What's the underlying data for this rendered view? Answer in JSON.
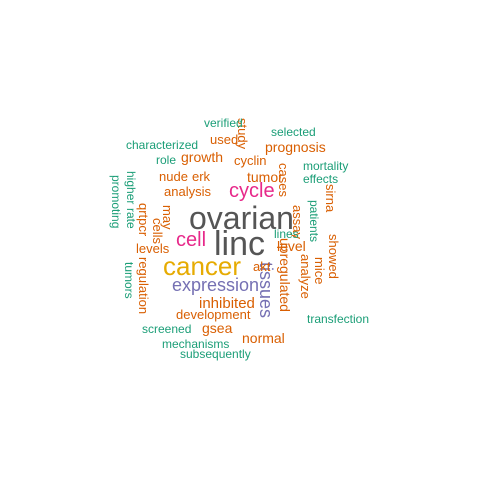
{
  "palette": {
    "green": "#1b9e77",
    "orange": "#d95f02",
    "purple": "#7570b3",
    "magenta": "#e7298a",
    "gold": "#e6ab02",
    "gray": "#555555"
  },
  "words": [
    {
      "id": "ovarian",
      "text": "ovarian",
      "color": "gray"
    },
    {
      "id": "linc",
      "text": "linc",
      "color": "gray"
    },
    {
      "id": "cancer",
      "text": "cancer",
      "color": "gold"
    },
    {
      "id": "cycle",
      "text": "cycle",
      "color": "magenta"
    },
    {
      "id": "cell",
      "text": "cell",
      "color": "magenta"
    },
    {
      "id": "expression",
      "text": "expression",
      "color": "purple"
    },
    {
      "id": "tissues",
      "text": "tissues",
      "color": "purple"
    },
    {
      "id": "inhibited",
      "text": "inhibited",
      "color": "orange"
    },
    {
      "id": "development",
      "text": "development",
      "color": "orange"
    },
    {
      "id": "upregulated",
      "text": "upregulated",
      "color": "orange"
    },
    {
      "id": "tumor",
      "text": "tumor",
      "color": "orange"
    },
    {
      "id": "level",
      "text": "level",
      "color": "orange"
    },
    {
      "id": "normal",
      "text": "normal",
      "color": "orange"
    },
    {
      "id": "gsea",
      "text": "gsea",
      "color": "orange"
    },
    {
      "id": "prognosis",
      "text": "prognosis",
      "color": "orange"
    },
    {
      "id": "growth",
      "text": "growth",
      "color": "orange"
    },
    {
      "id": "cyclin",
      "text": "cyclin",
      "color": "orange"
    },
    {
      "id": "analysis",
      "text": "analysis",
      "color": "orange"
    },
    {
      "id": "nude",
      "text": "nude",
      "color": "orange"
    },
    {
      "id": "erk",
      "text": "erk",
      "color": "orange"
    },
    {
      "id": "used",
      "text": "used",
      "color": "orange"
    },
    {
      "id": "study",
      "text": "study",
      "color": "orange"
    },
    {
      "id": "levels",
      "text": "levels",
      "color": "orange"
    },
    {
      "id": "akt",
      "text": "akt",
      "color": "orange"
    },
    {
      "id": "analyze",
      "text": "analyze",
      "color": "orange"
    },
    {
      "id": "showed",
      "text": "showed",
      "color": "orange"
    },
    {
      "id": "sirna",
      "text": "sirna",
      "color": "orange"
    },
    {
      "id": "assay",
      "text": "assay",
      "color": "orange"
    },
    {
      "id": "cases",
      "text": "cases",
      "color": "orange"
    },
    {
      "id": "may",
      "text": "may",
      "color": "orange"
    },
    {
      "id": "qrtpcr",
      "text": "qrtpcr",
      "color": "orange"
    },
    {
      "id": "cells",
      "text": "cells",
      "color": "orange"
    },
    {
      "id": "regulation",
      "text": "regulation",
      "color": "orange"
    },
    {
      "id": "mice",
      "text": "mice",
      "color": "orange"
    },
    {
      "id": "verified",
      "text": "verified",
      "color": "green"
    },
    {
      "id": "selected",
      "text": "selected",
      "color": "green"
    },
    {
      "id": "characterized",
      "text": "characterized",
      "color": "green"
    },
    {
      "id": "role",
      "text": "role",
      "color": "green"
    },
    {
      "id": "mortality",
      "text": "mortality",
      "color": "green"
    },
    {
      "id": "effects",
      "text": "effects",
      "color": "green"
    },
    {
      "id": "promoting",
      "text": "promoting",
      "color": "green"
    },
    {
      "id": "rate",
      "text": "rate",
      "color": "green"
    },
    {
      "id": "higher",
      "text": "higher",
      "color": "green"
    },
    {
      "id": "patients",
      "text": "patients",
      "color": "green"
    },
    {
      "id": "lines",
      "text": "lines",
      "color": "green"
    },
    {
      "id": "tumors",
      "text": "tumors",
      "color": "green"
    },
    {
      "id": "transfection",
      "text": "transfection",
      "color": "green"
    },
    {
      "id": "screened",
      "text": "screened",
      "color": "green"
    },
    {
      "id": "mechanisms",
      "text": "mechanisms",
      "color": "green"
    },
    {
      "id": "subsequently",
      "text": "subsequently",
      "color": "green"
    }
  ]
}
